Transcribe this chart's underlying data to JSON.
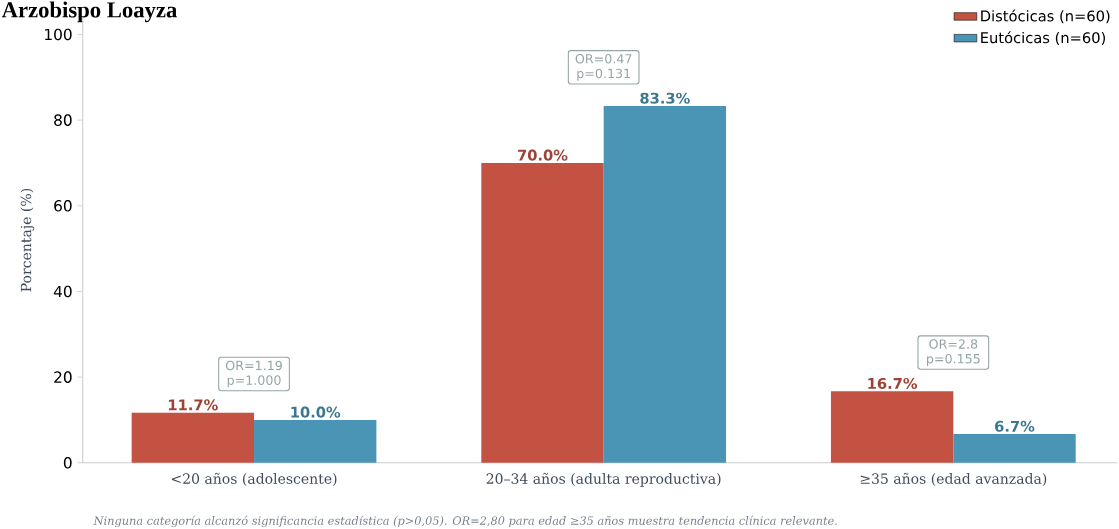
{
  "chart_data": {
    "type": "bar",
    "title": "Arzobispo Loayza",
    "ylabel": "Porcentaje (%)",
    "categories": [
      "<20 años (adolescente)",
      "20–34 años (adulta reproductiva)",
      "≥35 años (edad avanzada)"
    ],
    "series": [
      {
        "name": "Distócicas (n=60)",
        "color": "#c45243",
        "values": [
          11.7,
          70.0,
          16.7
        ],
        "value_labels": [
          "11.7%",
          "70.0%",
          "16.7%"
        ]
      },
      {
        "name": "Eutócicas (n=60)",
        "color": "#4a95b5",
        "values": [
          10.0,
          83.3,
          6.7
        ],
        "value_labels": [
          "10.0%",
          "83.3%",
          "6.7%"
        ]
      }
    ],
    "ylim": [
      0,
      104
    ],
    "yticks": [
      0,
      20,
      40,
      60,
      80,
      100
    ],
    "grid": false,
    "legend": "top right",
    "annotations": [
      "OR=1.19 p=1.000",
      "OR=0.47 p=0.131",
      "OR=2.8 p=0.155",
      "Ninguna categoría alcanzó significancia estadística (p>0,05). OR=2,80 para edad ≥35 años muestra tendencia clínica relevante."
    ]
  }
}
